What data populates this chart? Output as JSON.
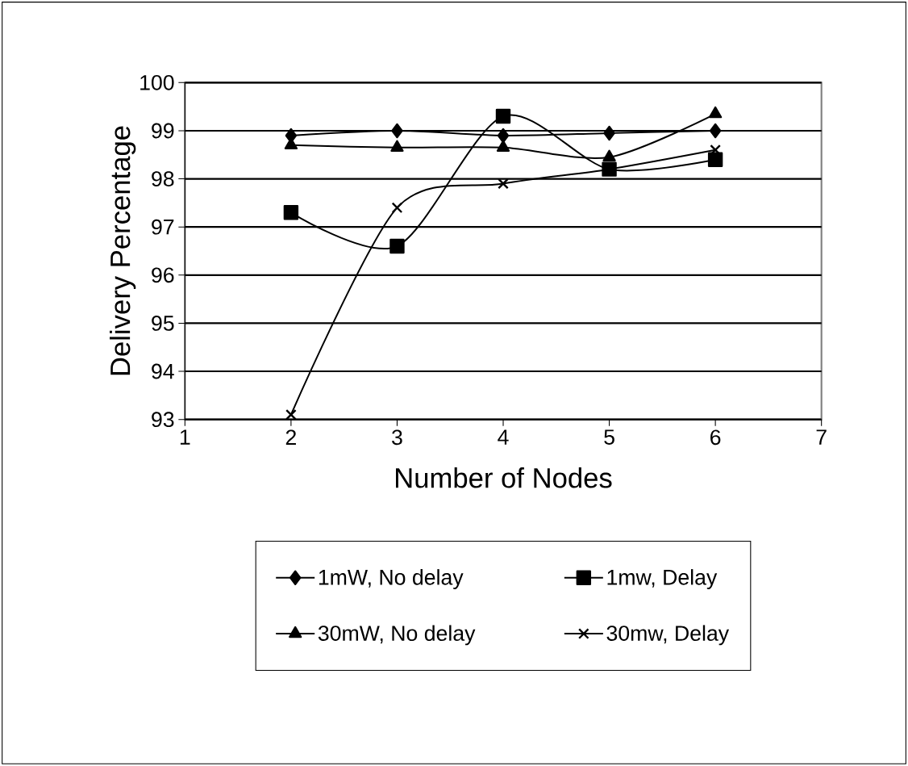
{
  "chart_data": {
    "type": "line",
    "xlabel": "Number of Nodes",
    "ylabel": "Delivery Percentage",
    "x": [
      2,
      3,
      4,
      5,
      6
    ],
    "series": [
      {
        "name": "1mW, No delay",
        "color": "#000000",
        "marker": "diamond",
        "values": [
          98.9,
          99.0,
          98.9,
          98.95,
          99.0
        ]
      },
      {
        "name": "1mw, Delay",
        "color": "#000000",
        "marker": "square",
        "values": [
          97.3,
          96.6,
          99.3,
          98.2,
          98.4
        ]
      },
      {
        "name": "30mW, No delay",
        "color": "#000000",
        "marker": "triangle",
        "values": [
          98.7,
          98.65,
          98.65,
          98.45,
          99.35
        ]
      },
      {
        "name": "30mw, Delay",
        "color": "#000000",
        "marker": "cross",
        "values": [
          93.1,
          97.4,
          97.9,
          98.2,
          98.6
        ]
      }
    ],
    "xlim": [
      1,
      7
    ],
    "xticks": [
      1,
      2,
      3,
      4,
      5,
      6,
      7
    ],
    "ylim": [
      93,
      100
    ],
    "yticks": [
      93,
      94,
      95,
      96,
      97,
      98,
      99,
      100
    ],
    "grid": "y",
    "legend": "bottom",
    "line_style": "solid"
  }
}
